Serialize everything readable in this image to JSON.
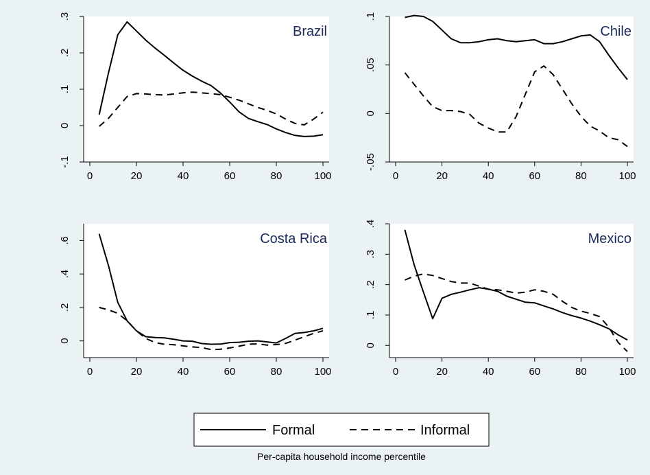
{
  "colors": {
    "background": "#eaf2f3",
    "plot_region": "#ffffff",
    "line": "#000000",
    "title_text": "#1a2a5a"
  },
  "legend": {
    "formal_label": "Formal",
    "informal_label": "Informal"
  },
  "note": "Per-capita household income percentile",
  "chart_data": [
    {
      "type": "line",
      "title": "Brazil",
      "xlim": [
        0,
        100
      ],
      "ylim": [
        -0.1,
        0.3
      ],
      "xticks": [
        0,
        20,
        40,
        60,
        80,
        100
      ],
      "xtick_labels": [
        "0",
        "20",
        "40",
        "60",
        "80",
        "100"
      ],
      "yticks": [
        -0.1,
        0,
        0.1,
        0.2,
        0.3
      ],
      "ytick_labels": [
        "-.1",
        "0",
        ".1",
        ".2",
        ".3"
      ],
      "series": [
        {
          "name": "Formal",
          "style": "solid",
          "x": [
            4,
            8,
            12,
            16,
            20,
            24,
            28,
            32,
            36,
            40,
            44,
            48,
            52,
            56,
            60,
            64,
            68,
            72,
            76,
            80,
            84,
            88,
            92,
            96,
            100
          ],
          "y": [
            0.03,
            0.145,
            0.25,
            0.285,
            0.26,
            0.235,
            0.213,
            0.193,
            0.172,
            0.152,
            0.136,
            0.122,
            0.11,
            0.09,
            0.065,
            0.038,
            0.02,
            0.011,
            0.003,
            -0.009,
            -0.019,
            -0.027,
            -0.03,
            -0.029,
            -0.025
          ]
        },
        {
          "name": "Informal",
          "style": "dash",
          "x": [
            4,
            8,
            12,
            16,
            20,
            24,
            28,
            32,
            36,
            40,
            44,
            48,
            52,
            56,
            60,
            64,
            68,
            72,
            76,
            80,
            84,
            88,
            92,
            96,
            100
          ],
          "y": [
            -0.002,
            0.02,
            0.05,
            0.08,
            0.088,
            0.087,
            0.085,
            0.084,
            0.087,
            0.09,
            0.092,
            0.09,
            0.088,
            0.085,
            0.078,
            0.07,
            0.06,
            0.05,
            0.042,
            0.032,
            0.018,
            0.006,
            0.002,
            0.018,
            0.037
          ]
        }
      ]
    },
    {
      "type": "line",
      "title": "Chile",
      "xlim": [
        0,
        100
      ],
      "ylim": [
        -0.05,
        0.1
      ],
      "xticks": [
        0,
        20,
        40,
        60,
        80,
        100
      ],
      "xtick_labels": [
        "0",
        "20",
        "40",
        "60",
        "80",
        "100"
      ],
      "yticks": [
        -0.05,
        0,
        0.05,
        0.1
      ],
      "ytick_labels": [
        "-.05",
        "0",
        ".05",
        ".1"
      ],
      "series": [
        {
          "name": "Formal",
          "style": "solid",
          "x": [
            4,
            8,
            12,
            16,
            20,
            24,
            28,
            32,
            36,
            40,
            44,
            48,
            52,
            56,
            60,
            64,
            68,
            72,
            76,
            80,
            84,
            88,
            92,
            96,
            100
          ],
          "y": [
            0.099,
            0.101,
            0.1,
            0.095,
            0.086,
            0.077,
            0.073,
            0.073,
            0.074,
            0.076,
            0.077,
            0.075,
            0.074,
            0.075,
            0.076,
            0.072,
            0.072,
            0.074,
            0.077,
            0.08,
            0.081,
            0.074,
            0.06,
            0.047,
            0.035
          ]
        },
        {
          "name": "Informal",
          "style": "dash",
          "x": [
            4,
            8,
            12,
            16,
            20,
            24,
            28,
            32,
            36,
            40,
            44,
            48,
            52,
            56,
            60,
            64,
            68,
            72,
            76,
            80,
            84,
            88,
            92,
            96,
            100
          ],
          "y": [
            0.042,
            0.03,
            0.018,
            0.007,
            0.003,
            0.003,
            0.002,
            -0.001,
            -0.01,
            -0.015,
            -0.019,
            -0.019,
            -0.003,
            0.02,
            0.043,
            0.049,
            0.04,
            0.025,
            0.01,
            -0.003,
            -0.013,
            -0.018,
            -0.025,
            -0.027,
            -0.034
          ]
        }
      ]
    },
    {
      "type": "line",
      "title": "Costa Rica",
      "xlim": [
        0,
        100
      ],
      "ylim": [
        -0.1,
        0.7
      ],
      "xticks": [
        0,
        20,
        40,
        60,
        80,
        100
      ],
      "xtick_labels": [
        "0",
        "20",
        "40",
        "60",
        "80",
        "100"
      ],
      "yticks": [
        0,
        0.2,
        0.4,
        0.6
      ],
      "ytick_labels": [
        "0",
        ".2",
        ".4",
        ".6"
      ],
      "series": [
        {
          "name": "Formal",
          "style": "solid",
          "x": [
            4,
            8,
            12,
            16,
            20,
            24,
            28,
            32,
            36,
            40,
            44,
            48,
            52,
            56,
            60,
            64,
            68,
            72,
            76,
            80,
            84,
            88,
            92,
            96,
            100
          ],
          "y": [
            0.64,
            0.45,
            0.23,
            0.12,
            0.06,
            0.025,
            0.02,
            0.018,
            0.01,
            0.0,
            -0.002,
            -0.016,
            -0.02,
            -0.019,
            -0.01,
            -0.008,
            -0.002,
            0.0,
            -0.006,
            -0.012,
            0.015,
            0.045,
            0.05,
            0.06,
            0.075
          ]
        },
        {
          "name": "Informal",
          "style": "dash",
          "x": [
            4,
            8,
            12,
            16,
            20,
            24,
            28,
            32,
            36,
            40,
            44,
            48,
            52,
            56,
            60,
            64,
            68,
            72,
            76,
            80,
            84,
            88,
            92,
            96,
            100
          ],
          "y": [
            0.2,
            0.185,
            0.165,
            0.12,
            0.06,
            0.015,
            -0.01,
            -0.02,
            -0.023,
            -0.03,
            -0.036,
            -0.04,
            -0.052,
            -0.05,
            -0.042,
            -0.032,
            -0.02,
            -0.018,
            -0.025,
            -0.022,
            -0.015,
            0.005,
            0.025,
            0.045,
            0.06
          ]
        }
      ]
    },
    {
      "type": "line",
      "title": "Mexico",
      "xlim": [
        0,
        100
      ],
      "ylim": [
        -0.04,
        0.4
      ],
      "xticks": [
        0,
        20,
        40,
        60,
        80,
        100
      ],
      "xtick_labels": [
        "0",
        "20",
        "40",
        "60",
        "80",
        "100"
      ],
      "yticks": [
        0,
        0.1,
        0.2,
        0.3,
        0.4
      ],
      "ytick_labels": [
        "0",
        ".1",
        ".2",
        ".3",
        ".4"
      ],
      "series": [
        {
          "name": "Formal",
          "style": "solid",
          "x": [
            4,
            8,
            12,
            16,
            20,
            24,
            28,
            32,
            36,
            40,
            44,
            48,
            52,
            56,
            60,
            64,
            68,
            72,
            76,
            80,
            84,
            88,
            92,
            96,
            100
          ],
          "y": [
            0.38,
            0.265,
            0.175,
            0.088,
            0.155,
            0.168,
            0.175,
            0.183,
            0.19,
            0.185,
            0.178,
            0.162,
            0.152,
            0.142,
            0.14,
            0.13,
            0.12,
            0.108,
            0.098,
            0.09,
            0.08,
            0.068,
            0.055,
            0.035,
            0.018
          ]
        },
        {
          "name": "Informal",
          "style": "dash",
          "x": [
            4,
            8,
            12,
            16,
            20,
            24,
            28,
            32,
            36,
            40,
            44,
            48,
            52,
            56,
            60,
            64,
            68,
            72,
            76,
            80,
            84,
            88,
            92,
            96,
            100
          ],
          "y": [
            0.215,
            0.228,
            0.235,
            0.23,
            0.22,
            0.21,
            0.205,
            0.205,
            0.195,
            0.185,
            0.183,
            0.178,
            0.172,
            0.175,
            0.183,
            0.178,
            0.168,
            0.145,
            0.125,
            0.113,
            0.105,
            0.095,
            0.06,
            0.01,
            -0.02
          ]
        }
      ]
    }
  ]
}
